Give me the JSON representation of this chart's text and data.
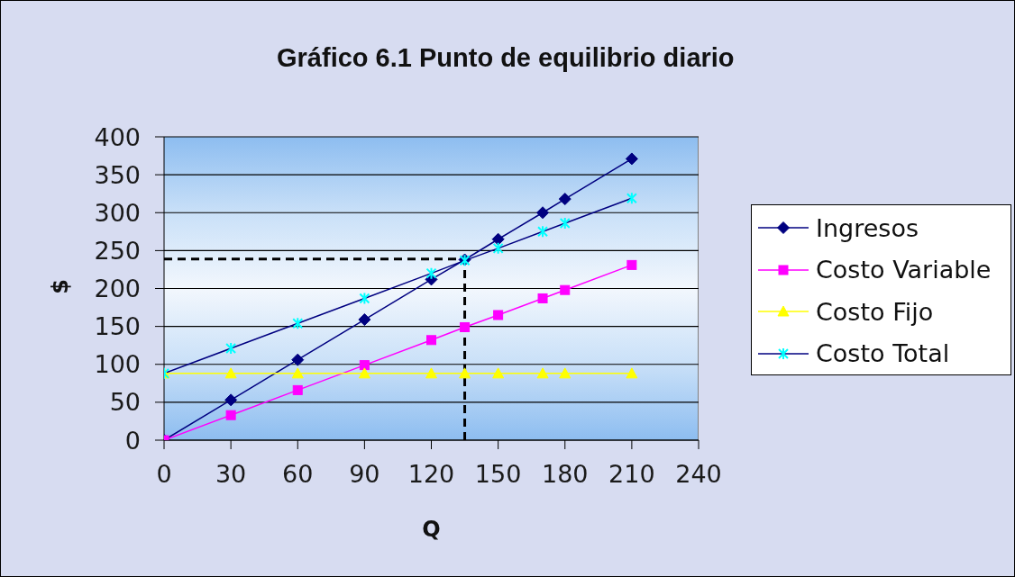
{
  "chart_data": {
    "type": "line",
    "title": "Gráfico 6.1 Punto de equilibrio diario",
    "xlabel": "Q",
    "ylabel": "$",
    "x": [
      0,
      30,
      60,
      90,
      120,
      135,
      150,
      170,
      180,
      210
    ],
    "series": [
      {
        "name": "Ingresos",
        "color": "#000080",
        "marker": "diamond",
        "values": [
          0,
          53,
          106,
          159,
          212,
          238,
          265,
          300,
          318,
          371
        ]
      },
      {
        "name": "Costo Variable",
        "color": "#ff00ff",
        "marker": "square",
        "values": [
          0,
          33,
          66,
          99,
          132,
          149,
          165,
          187,
          198,
          231
        ]
      },
      {
        "name": "Costo Fijo",
        "color": "#ffff00",
        "marker": "triangle",
        "values": [
          88,
          88,
          88,
          88,
          88,
          88,
          88,
          88,
          88,
          88
        ]
      },
      {
        "name": "Costo Total",
        "color": "#000080",
        "colors": [
          "#00ffff",
          "#00ffff",
          "#00ffff",
          "#00ffff",
          "#00ffff",
          "#00ffff",
          "#00ffff",
          "#00ffff",
          "#00ffff",
          "#00ffff"
        ],
        "marker": "cross",
        "values": [
          88,
          121,
          154,
          187,
          220,
          237,
          253,
          275,
          286,
          319
        ]
      }
    ],
    "ref_lines": [
      {
        "axis": "y",
        "value": 239,
        "color": "#000000",
        "line_style": "dashed"
      },
      {
        "axis": "x",
        "value": 135,
        "color": "#000000",
        "line_style": "dashed"
      }
    ],
    "xlim": [
      0,
      240
    ],
    "xticks": [
      0,
      30,
      60,
      90,
      120,
      150,
      180,
      210,
      240
    ],
    "ylim": [
      0,
      400
    ],
    "yticks": [
      0,
      50,
      100,
      150,
      200,
      250,
      300,
      350,
      400
    ],
    "grid": "y",
    "legend": "right"
  }
}
